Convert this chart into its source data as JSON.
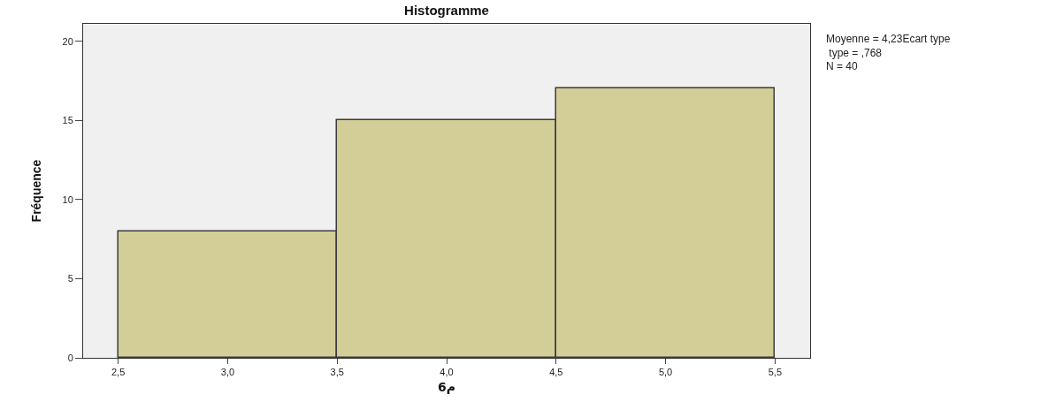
{
  "chart_data": {
    "type": "histogram",
    "title": "Histogramme",
    "xlabel": "م6",
    "ylabel": "Fréquence",
    "bins": [
      2.5,
      3.5,
      4.5,
      5.5
    ],
    "values": [
      8,
      15,
      17
    ],
    "color": "#d3ce97",
    "xlim": [
      2.34,
      5.66
    ],
    "xticks": [
      {
        "value": 2.5,
        "label": "2,5"
      },
      {
        "value": 3.0,
        "label": "3,0"
      },
      {
        "value": 3.5,
        "label": "3,5"
      },
      {
        "value": 4.0,
        "label": "4,0"
      },
      {
        "value": 4.5,
        "label": "4,5"
      },
      {
        "value": 5.0,
        "label": "5,0"
      },
      {
        "value": 5.5,
        "label": "5,5"
      }
    ],
    "ylim": [
      0,
      21.1
    ],
    "yticks": [
      0,
      5,
      10,
      15,
      20
    ],
    "grid": false,
    "annotations": [
      "Moyenne = 4,23Ecart type\n type = ,768\nN = 40"
    ]
  }
}
